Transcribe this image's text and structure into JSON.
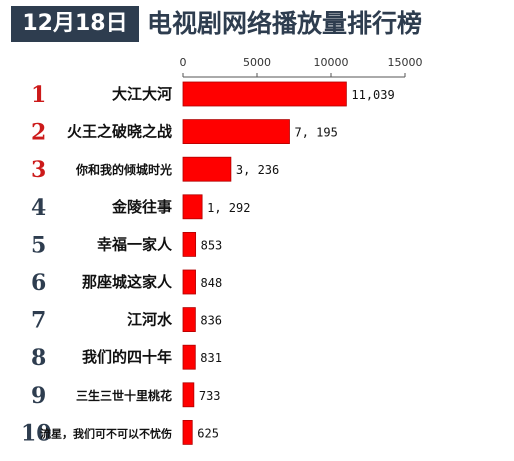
{
  "header": {
    "date": "12月18日",
    "title": "电视剧网络播放量排行榜"
  },
  "colors": {
    "bar": "#ff0000",
    "top_rank": "#cc1a1a",
    "other_rank": "#2e3d4f",
    "header_bg": "#2e3d4f"
  },
  "chart_data": {
    "type": "bar",
    "orientation": "horizontal",
    "title": "电视剧网络播放量排行榜",
    "xlim": [
      0,
      15000
    ],
    "x_ticks": [
      "0",
      "5000",
      "10000",
      "15000"
    ],
    "grid": false,
    "ranks": [
      "1",
      "2",
      "3",
      "4",
      "5",
      "6",
      "7",
      "8",
      "9",
      "10"
    ],
    "categories": [
      "大江大河",
      "火王之破晓之战",
      "你和我的倾城时光",
      "金陵往事",
      "幸福一家人",
      "那座城这家人",
      "江河水",
      "我们的四十年",
      "三生三世十里桃花",
      "流星，我们可不可以不忧伤"
    ],
    "values": [
      11039,
      7195,
      3236,
      1292,
      853,
      848,
      836,
      831,
      733,
      625
    ],
    "value_labels": [
      "11,039",
      "7, 195",
      "3, 236",
      "1, 292",
      "853",
      "848",
      "836",
      "831",
      "733",
      "625"
    ]
  }
}
